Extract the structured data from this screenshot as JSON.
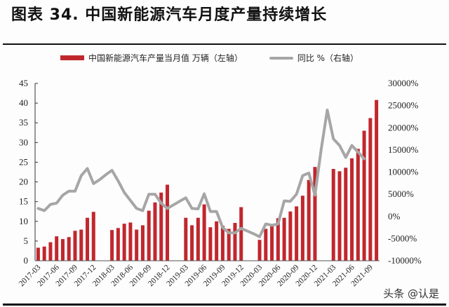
{
  "title": "图表 34. 中国新能源汽车月度产量持续增长",
  "legend": {
    "bar_label": "中国新能源汽车产量当月值 万辆（左轴）",
    "line_label": "同比 %（右轴）"
  },
  "watermark": "头条 @认是",
  "colors": {
    "bar": "#c0272d",
    "line": "#a6a6a6",
    "axis": "#333333"
  },
  "chart_data": {
    "type": "bar+line",
    "title": "中国新能源汽车月度产量持续增长",
    "left_axis": {
      "label": "万辆",
      "ylim": [
        0,
        45
      ],
      "ticks": [
        0,
        5,
        10,
        15,
        20,
        25,
        30,
        35,
        40,
        45
      ]
    },
    "right_axis": {
      "label": "同比 %",
      "ylim": [
        -10000,
        30000
      ],
      "ticks": [
        "-10000%",
        "-5000%",
        "0%",
        "5000%",
        "10000%",
        "15000%",
        "20000%",
        "25000%",
        "30000%"
      ]
    },
    "x_tick_labels": [
      "2017-03",
      "2017-06",
      "2017-09",
      "2017-12",
      "2018-03",
      "2018-06",
      "2018-09",
      "2018-12",
      "2019-03",
      "2019-06",
      "2019-09",
      "2019-12",
      "2020-03",
      "2020-06",
      "2020-09",
      "2020-12",
      "2021-03",
      "2021-06",
      "2021-09"
    ],
    "legend_position": "top",
    "grid": false,
    "months": [
      "2017-03",
      "2017-04",
      "2017-05",
      "2017-06",
      "2017-07",
      "2017-08",
      "2017-09",
      "2017-10",
      "2017-11",
      "2017-12",
      "2018-01",
      "2018-02",
      "2018-03",
      "2018-04",
      "2018-05",
      "2018-06",
      "2018-07",
      "2018-08",
      "2018-09",
      "2018-10",
      "2018-11",
      "2018-12",
      "2019-01",
      "2019-02",
      "2019-03",
      "2019-04",
      "2019-05",
      "2019-06",
      "2019-07",
      "2019-08",
      "2019-09",
      "2019-10",
      "2019-11",
      "2019-12",
      "2020-01",
      "2020-02",
      "2020-03",
      "2020-04",
      "2020-05",
      "2020-06",
      "2020-07",
      "2020-08",
      "2020-09",
      "2020-10",
      "2020-11",
      "2020-12",
      "2021-01",
      "2021-02",
      "2021-03",
      "2021-04",
      "2021-05",
      "2021-06",
      "2021-07",
      "2021-08",
      "2021-09",
      "2021-10"
    ],
    "series": [
      {
        "name": "中国新能源汽车产量当月值 万辆（左轴）",
        "type": "bar",
        "axis": "left",
        "values": [
          3.3,
          3.6,
          4.7,
          6.2,
          5.5,
          6.0,
          7.6,
          7.9,
          10.9,
          12.4,
          null,
          null,
          7.8,
          8.3,
          9.4,
          9.7,
          7.9,
          9.0,
          12.7,
          14.8,
          17.3,
          19.3,
          null,
          null,
          10.9,
          9.0,
          10.9,
          14.3,
          8.5,
          10.0,
          8.9,
          8.1,
          9.6,
          13.6,
          null,
          null,
          5.3,
          8.1,
          9.3,
          10.8,
          10.9,
          12.5,
          13.8,
          16.5,
          20.5,
          23.8,
          null,
          null,
          23.3,
          22.7,
          23.6,
          26.0,
          28.4,
          33.0,
          36.2,
          40.8
        ]
      },
      {
        "name": "同比 %（右轴）",
        "type": "line",
        "axis": "right",
        "values": [
          1800,
          1300,
          2700,
          3000,
          4800,
          5700,
          5700,
          9200,
          10800,
          7400,
          8300,
          9400,
          10400,
          8000,
          5400,
          3600,
          1800,
          1300,
          5000,
          5000,
          3000,
          1800,
          2600,
          3400,
          4200,
          1800,
          1700,
          5100,
          1100,
          1100,
          -2500,
          -3700,
          -3700,
          -2700,
          -3300,
          -3900,
          -4600,
          -1700,
          -2000,
          -1700,
          3500,
          3400,
          5000,
          9200,
          9800,
          4800,
          15000,
          24000,
          17500,
          16000,
          13300,
          16000,
          14500,
          13000,
          null,
          null
        ]
      }
    ]
  }
}
